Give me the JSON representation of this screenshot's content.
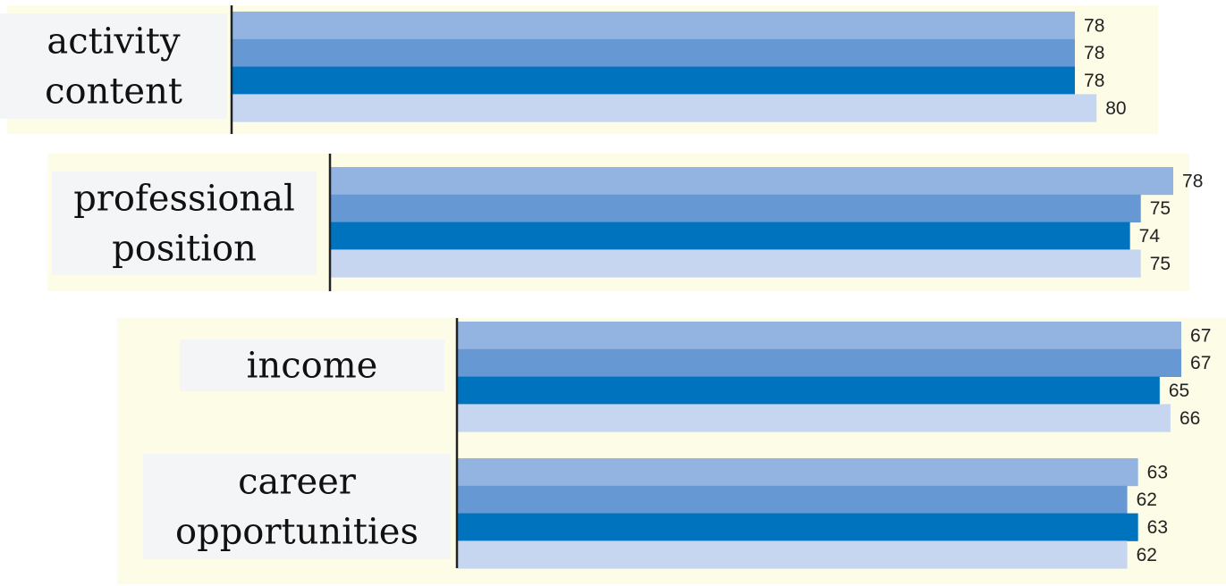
{
  "chart_data": {
    "type": "bar",
    "orientation": "horizontal",
    "title": "",
    "xlabel": "",
    "ylabel": "",
    "categories": [
      [
        "activity",
        "content"
      ],
      [
        "professional",
        "position"
      ],
      [
        "income"
      ],
      [
        "career",
        "opportunities"
      ]
    ],
    "series": [
      {
        "color": "#93b4e0",
        "values": [
          78,
          78,
          67,
          63
        ]
      },
      {
        "color": "#6699d3",
        "values": [
          78,
          75,
          67,
          62
        ]
      },
      {
        "color": "#0073bf",
        "values": [
          78,
          74,
          65,
          63
        ]
      },
      {
        "color": "#c7d6f0",
        "values": [
          80,
          75,
          66,
          62
        ]
      }
    ],
    "grid": false,
    "legend": "none"
  },
  "colors": {
    "panel_background": "#fdfce6",
    "label_background": "#f4f5f7",
    "axis_line": "#222222"
  }
}
